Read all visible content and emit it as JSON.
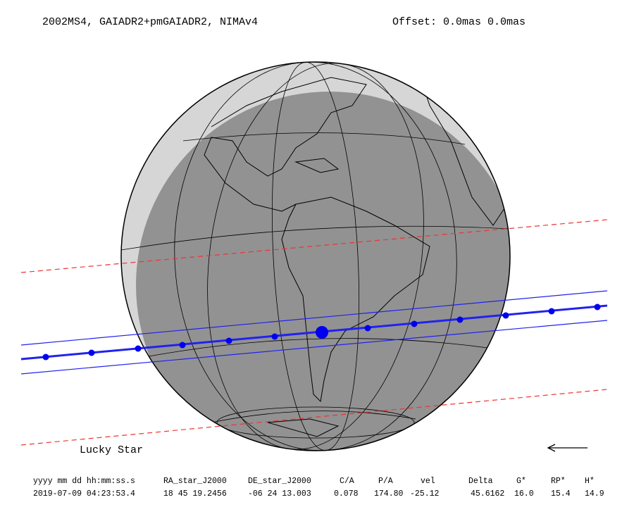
{
  "header": {
    "title": "2002MS4, GAIADR2+pmGAIADR2, NIMAv4",
    "offset": "Offset: 0.0mas 0.0mas"
  },
  "footer_label": "Lucky Star",
  "table": {
    "columns": [
      "yyyy mm dd hh:mm:ss.s",
      "RA_star_J2000",
      "DE_star_J2000",
      "C/A",
      "P/A",
      "vel",
      "Delta",
      "G*",
      "RP*",
      "H*"
    ],
    "rows": [
      [
        "2019-07-09 04:23:53.4",
        "18 45 19.2456",
        "-06 24 13.003",
        "0.078",
        "174.80",
        "-25.12",
        "45.6162",
        "16.0",
        "15.4",
        "14.9"
      ]
    ]
  }
}
